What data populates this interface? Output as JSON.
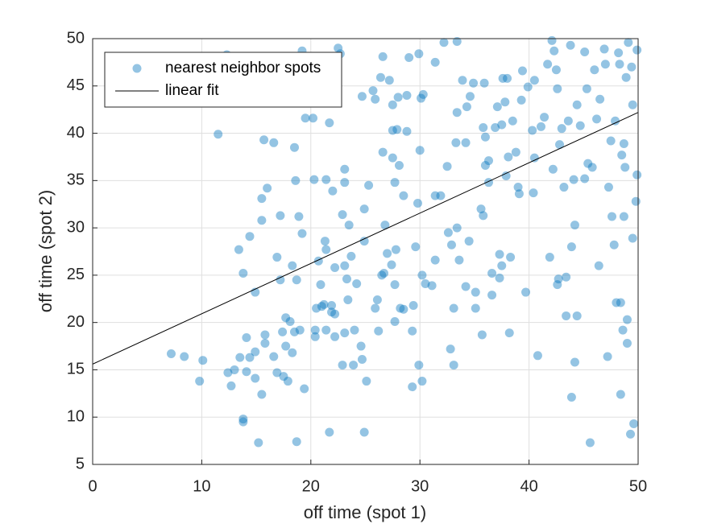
{
  "chart_data": {
    "type": "scatter",
    "xlabel": "off time (spot 1)",
    "ylabel": "off time (spot 2)",
    "xlim": [
      0,
      50
    ],
    "ylim": [
      5,
      50
    ],
    "xticks": [
      0,
      10,
      20,
      30,
      40,
      50
    ],
    "yticks": [
      5,
      10,
      15,
      20,
      25,
      30,
      35,
      40,
      45,
      50
    ],
    "grid": true,
    "legend": "northwest",
    "series": [
      {
        "name": "nearest neighbor spots",
        "type": "scatter",
        "color": "#0072bd",
        "x": [
          7.2,
          8.4,
          9.8,
          10.1,
          11.5,
          12.3,
          12.4,
          12.7,
          13.0,
          13.4,
          13.5,
          13.8,
          13.8,
          13.8,
          14.1,
          14.1,
          14.4,
          14.4,
          14.9,
          14.9,
          14.9,
          15.2,
          15.5,
          15.5,
          15.5,
          15.7,
          15.8,
          15.8,
          16.0,
          16.6,
          16.6,
          16.9,
          16.9,
          17.2,
          17.2,
          17.4,
          17.5,
          17.7,
          17.7,
          17.9,
          18.1,
          18.3,
          18.3,
          18.5,
          18.5,
          18.6,
          18.7,
          18.7,
          18.9,
          19.0,
          19.2,
          19.2,
          19.4,
          19.5,
          20.2,
          20.3,
          20.4,
          20.4,
          20.5,
          20.7,
          20.9,
          21.0,
          21.2,
          21.3,
          21.4,
          21.4,
          21.4,
          21.7,
          21.7,
          21.9,
          21.9,
          22.0,
          22.2,
          22.2,
          22.2,
          22.5,
          22.7,
          22.9,
          23.1,
          23.1,
          23.1,
          23.1,
          23.3,
          22.9,
          23.4,
          23.5,
          23.7,
          23.9,
          24.0,
          24.2,
          24.6,
          24.7,
          24.7,
          24.9,
          24.9,
          24.9,
          25.1,
          25.3,
          25.7,
          25.9,
          25.9,
          26.1,
          26.2,
          26.4,
          26.5,
          26.6,
          26.6,
          26.7,
          26.8,
          27.0,
          27.2,
          27.4,
          27.5,
          27.5,
          27.5,
          27.7,
          27.7,
          27.7,
          27.8,
          27.9,
          28.0,
          28.1,
          28.2,
          28.5,
          28.5,
          28.8,
          28.8,
          29.0,
          29.3,
          29.3,
          29.4,
          29.6,
          29.9,
          29.8,
          29.9,
          30.0,
          30.1,
          30.2,
          30.3,
          30.2,
          30.5,
          31.1,
          31.4,
          31.4,
          31.4,
          31.9,
          32.2,
          32.5,
          32.6,
          32.8,
          32.9,
          33.1,
          33.1,
          33.3,
          33.4,
          33.4,
          33.4,
          33.6,
          33.9,
          34.2,
          34.2,
          34.3,
          34.5,
          34.6,
          34.9,
          35.1,
          35.1,
          35.6,
          35.8,
          35.7,
          35.8,
          35.9,
          36.0,
          36.0,
          36.3,
          36.3,
          36.6,
          36.6,
          36.9,
          37.1,
          37.3,
          37.3,
          37.5,
          37.5,
          37.6,
          37.8,
          37.9,
          38.0,
          38.1,
          38.2,
          38.3,
          38.5,
          38.8,
          39.0,
          39.1,
          39.3,
          39.4,
          39.7,
          39.9,
          40.3,
          40.5,
          40.4,
          40.5,
          40.8,
          41.1,
          41.4,
          41.7,
          41.9,
          42.1,
          42.2,
          42.3,
          42.5,
          42.6,
          42.6,
          42.7,
          42.8,
          43.0,
          43.2,
          43.4,
          43.4,
          43.6,
          43.8,
          43.9,
          43.9,
          44.1,
          44.2,
          44.2,
          44.4,
          44.4,
          44.7,
          45.1,
          45.1,
          45.3,
          45.4,
          45.6,
          45.8,
          46.0,
          46.2,
          46.4,
          46.5,
          46.9,
          47.0,
          47.2,
          47.3,
          47.5,
          47.6,
          47.8,
          47.9,
          48.0,
          48.2,
          48.3,
          48.4,
          48.4,
          48.5,
          48.6,
          48.7,
          48.7,
          48.8,
          48.9,
          49.0,
          49.0,
          49.1,
          49.3,
          49.4,
          49.5,
          49.5,
          49.6,
          49.8,
          49.9,
          49.9
        ],
        "values": [
          16.7,
          16.4,
          13.8,
          16.0,
          39.9,
          48.3,
          14.7,
          13.3,
          15.0,
          27.7,
          16.3,
          25.2,
          9.8,
          9.5,
          14.8,
          18.4,
          29.1,
          16.3,
          16.9,
          14.1,
          23.2,
          7.3,
          33.1,
          30.8,
          12.4,
          39.3,
          17.8,
          18.7,
          34.2,
          39.0,
          16.4,
          26.9,
          14.7,
          31.3,
          24.5,
          19.0,
          14.3,
          20.5,
          17.5,
          13.8,
          20.1,
          26.0,
          16.8,
          19.0,
          38.5,
          35.0,
          24.5,
          7.4,
          31.2,
          19.2,
          48.7,
          29.4,
          13.0,
          41.6,
          41.6,
          35.1,
          19.2,
          18.5,
          21.5,
          26.5,
          24.0,
          21.7,
          21.9,
          28.6,
          35.1,
          27.7,
          19.2,
          41.1,
          8.4,
          21.1,
          21.8,
          33.9,
          18.5,
          25.8,
          20.9,
          49.0,
          48.4,
          31.4,
          18.9,
          26.0,
          34.8,
          36.2,
          24.6,
          15.5,
          22.4,
          30.3,
          27.0,
          15.5,
          19.2,
          24.1,
          17.5,
          16.1,
          43.9,
          32.0,
          28.6,
          8.4,
          13.8,
          34.5,
          44.5,
          43.6,
          21.5,
          22.4,
          19.1,
          45.9,
          25.0,
          48.1,
          38.0,
          25.2,
          30.3,
          27.3,
          45.6,
          26.1,
          43.0,
          40.3,
          37.4,
          34.8,
          24.0,
          20.1,
          27.7,
          40.4,
          43.8,
          36.6,
          21.5,
          33.4,
          21.4,
          44.0,
          40.2,
          48.0,
          19.1,
          13.2,
          21.8,
          28.0,
          15.5,
          32.6,
          48.4,
          38.2,
          43.7,
          25.0,
          44.1,
          13.8,
          24.1,
          23.9,
          47.5,
          33.4,
          26.6,
          33.4,
          49.6,
          36.5,
          29.5,
          17.2,
          28.2,
          21.5,
          15.5,
          39.0,
          49.7,
          30.0,
          42.2,
          26.6,
          45.6,
          39.0,
          23.8,
          42.8,
          28.6,
          43.9,
          45.3,
          23.2,
          21.5,
          32.0,
          40.6,
          18.7,
          31.3,
          45.3,
          39.6,
          36.6,
          34.8,
          37.1,
          22.9,
          25.2,
          40.6,
          42.8,
          27.2,
          24.7,
          26.0,
          40.9,
          45.8,
          43.3,
          35.5,
          45.8,
          37.5,
          18.9,
          26.9,
          41.3,
          38.0,
          34.3,
          33.6,
          43.5,
          46.6,
          23.2,
          44.9,
          40.3,
          37.4,
          33.7,
          45.6,
          16.5,
          40.7,
          41.7,
          47.3,
          26.9,
          49.8,
          36.2,
          48.7,
          46.7,
          44.7,
          24.0,
          24.6,
          38.8,
          40.5,
          34.3,
          24.8,
          20.7,
          41.3,
          49.3,
          12.1,
          28.0,
          35.1,
          30.3,
          15.8,
          43.0,
          20.7,
          40.8,
          48.6,
          35.2,
          44.7,
          36.8,
          7.3,
          36.4,
          46.7,
          41.5,
          26.0,
          43.6,
          48.9,
          47.3,
          16.4,
          34.3,
          39.2,
          31.2,
          28.2,
          41.3,
          22.1,
          48.5,
          47.3,
          12.4,
          22.1,
          37.7,
          19.2,
          31.2,
          38.9,
          36.4,
          45.9,
          20.3,
          17.8,
          49.6,
          8.2,
          47.0,
          28.9,
          43.0,
          9.3,
          32.8,
          35.6,
          48.8
        ]
      },
      {
        "name": "linear fit",
        "type": "line",
        "color": "#000000",
        "x": [
          0,
          50
        ],
        "values": [
          15.6,
          42.2
        ]
      }
    ]
  }
}
